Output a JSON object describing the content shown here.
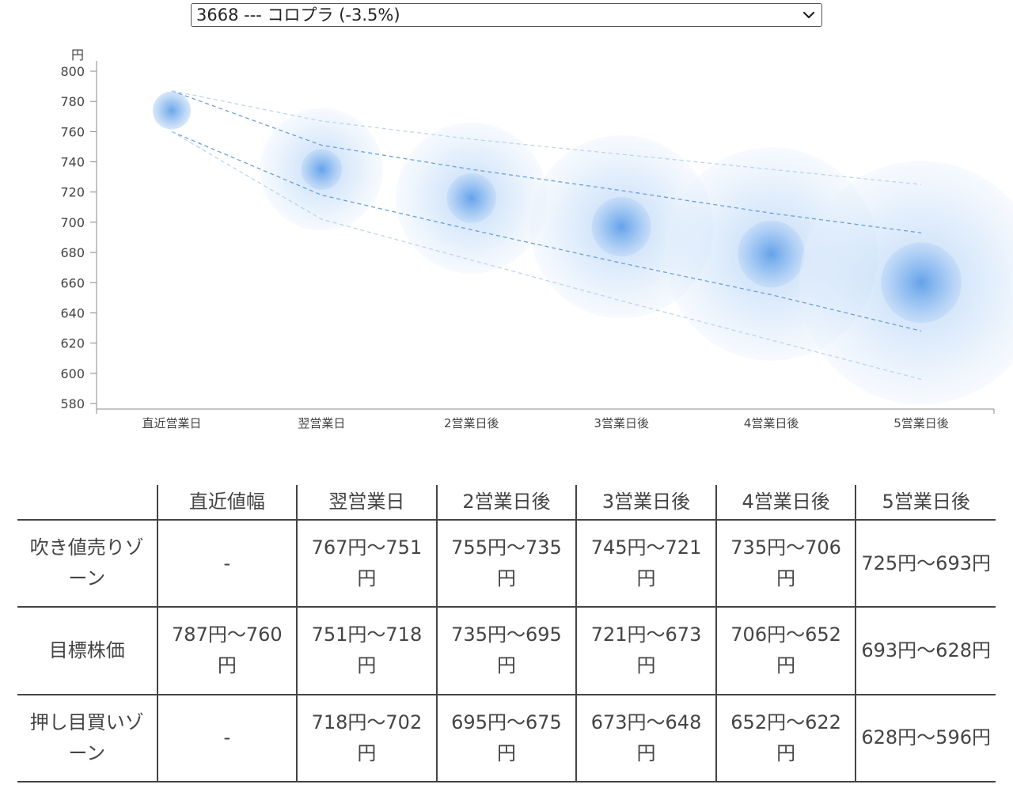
{
  "selector": {
    "selected": "3668 --- コロプラ (-3.5%)"
  },
  "chart_data": {
    "type": "scatter",
    "unit_label": "円",
    "categories": [
      "直近営業日",
      "翌営業日",
      "2営業日後",
      "3営業日後",
      "4営業日後",
      "5営業日後"
    ],
    "ylim": [
      580,
      800
    ],
    "yticks": [
      800,
      780,
      760,
      740,
      720,
      700,
      680,
      660,
      640,
      620,
      600,
      580
    ],
    "center": [
      774,
      735,
      716,
      697,
      679,
      660
    ],
    "inner_band_upper": [
      787,
      751,
      735,
      721,
      706,
      693
    ],
    "inner_band_lower": [
      760,
      718,
      695,
      673,
      652,
      628
    ],
    "outer_band_upper": [
      787,
      767,
      755,
      745,
      735,
      725
    ],
    "outer_band_lower": [
      760,
      702,
      675,
      648,
      622,
      596
    ],
    "accent_color": "#4a90e2",
    "grid": false
  },
  "table": {
    "headers": [
      "",
      "直近値幅",
      "翌営業日",
      "2営業日後",
      "3営業日後",
      "4営業日後",
      "5営業日後"
    ],
    "rows": [
      {
        "label": "吹き値売りゾーン",
        "cells": [
          "-",
          "767円〜751円",
          "755円〜735円",
          "745円〜721円",
          "735円〜706円",
          "725円〜693円"
        ]
      },
      {
        "label": "目標株価",
        "cells": [
          "787円〜760円",
          "751円〜718円",
          "735円〜695円",
          "721円〜673円",
          "706円〜652円",
          "693円〜628円"
        ]
      },
      {
        "label": "押し目買いゾーン",
        "cells": [
          "-",
          "718円〜702円",
          "695円〜675円",
          "673円〜648円",
          "652円〜622円",
          "628円〜596円"
        ]
      }
    ]
  }
}
